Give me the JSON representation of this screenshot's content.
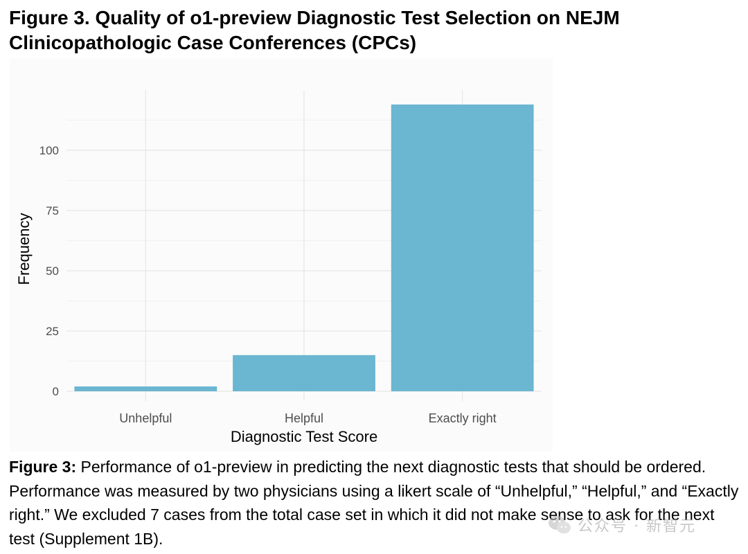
{
  "figure": {
    "title_line1": "Figure 3. Quality of o1-preview Diagnostic Test Selection on NEJM",
    "title_line2": "Clinicopathologic Case Conferences (CPCs)",
    "caption_label": "Figure 3:",
    "caption_text": " Performance of o1-preview in predicting the next diagnostic tests that should be ordered. Performance was measured by two physicians using a likert scale of “Unhelpful,” “Helpful,” and “Exactly right.” We excluded 7 cases from the total case set in which it did not make sense to ask for the next test (Supplement 1B)."
  },
  "watermark": {
    "text": "公众号 · 新智元",
    "icon": "wechat-icon"
  },
  "chart_data": {
    "type": "bar",
    "categories": [
      "Unhelpful",
      "Helpful",
      "Exactly right"
    ],
    "values": [
      2,
      15,
      119
    ],
    "xlabel": "Diagnostic Test Score",
    "ylabel": "Frequency",
    "ylim": [
      0,
      125
    ],
    "yticks": [
      0,
      25,
      50,
      75,
      100
    ],
    "grid": true,
    "colors": {
      "bar": "#6bb6d1",
      "grid_major": "#e6e6e6",
      "grid_minor": "#f0f0f0",
      "tick_text": "#4d4d4d",
      "axis_title": "#000000",
      "panel_background": "#fbfbfb"
    }
  }
}
